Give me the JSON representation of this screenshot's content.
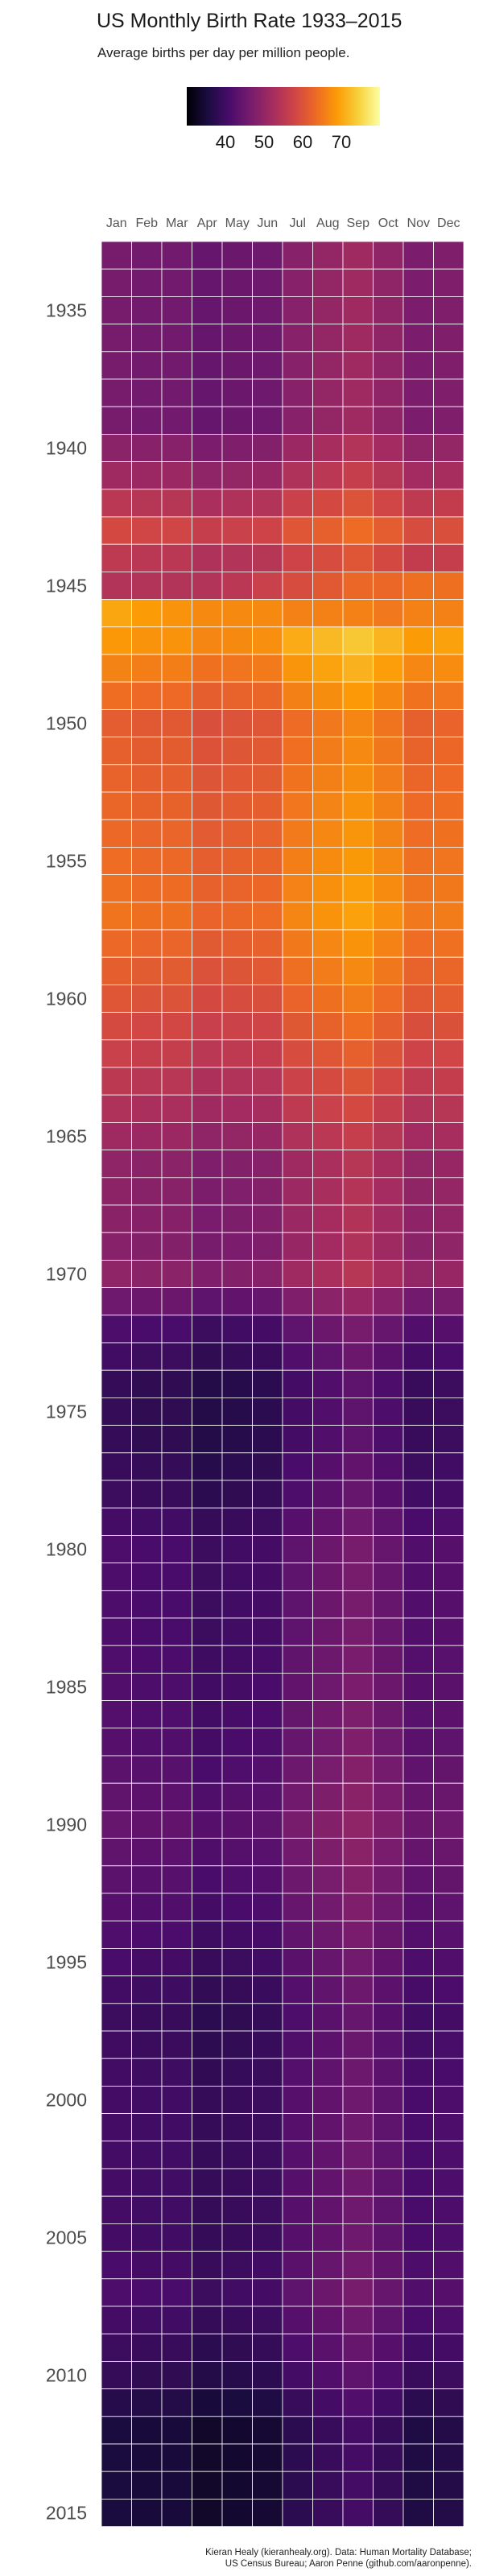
{
  "chart_data": {
    "type": "heatmap",
    "title": "US Monthly Birth Rate 1933–2015",
    "subtitle": "Average births per day per million people.",
    "x_categories": [
      "Jan",
      "Feb",
      "Mar",
      "Apr",
      "May",
      "Jun",
      "Jul",
      "Aug",
      "Sep",
      "Oct",
      "Nov",
      "Dec"
    ],
    "y_range": [
      1933,
      2015
    ],
    "y_tick_labels": [
      "1935",
      "1940",
      "1945",
      "1950",
      "1955",
      "1960",
      "1965",
      "1970",
      "1975",
      "1980",
      "1985",
      "1990",
      "1995",
      "2000",
      "2005",
      "2010",
      "2015"
    ],
    "legend": {
      "type": "colorbar",
      "tick_labels": [
        "40",
        "50",
        "60",
        "70"
      ],
      "domain": [
        30,
        80
      ],
      "placement": "top"
    },
    "colormap": [
      "#000004",
      "#1b0c41",
      "#4a0c6b",
      "#781c6d",
      "#a52c60",
      "#cf4446",
      "#ed6925",
      "#fb9b06",
      "#f7d13d",
      "#fcffa4"
    ],
    "grid": true,
    "grid_color": "#ffffff",
    "year_levels": [
      [
        1933,
        47
      ],
      [
        1935,
        47
      ],
      [
        1939,
        47
      ],
      [
        1941,
        52
      ],
      [
        1943,
        59
      ],
      [
        1944,
        56
      ],
      [
        1945,
        54
      ],
      [
        1946,
        62
      ],
      [
        1947,
        69
      ],
      [
        1950,
        62
      ],
      [
        1957,
        65
      ],
      [
        1960,
        61
      ],
      [
        1964,
        54
      ],
      [
        1966,
        50
      ],
      [
        1969,
        49
      ],
      [
        1970,
        50
      ],
      [
        1972,
        42
      ],
      [
        1974,
        39
      ],
      [
        1976,
        39
      ],
      [
        1978,
        40
      ],
      [
        1980,
        42
      ],
      [
        1983,
        42
      ],
      [
        1987,
        43
      ],
      [
        1990,
        45
      ],
      [
        1993,
        43
      ],
      [
        1997,
        40
      ],
      [
        2000,
        41
      ],
      [
        2005,
        41
      ],
      [
        2007,
        42
      ],
      [
        2010,
        39
      ],
      [
        2012,
        36
      ],
      [
        2015,
        36
      ]
    ],
    "month_offsets": [
      -0.5,
      -1,
      -1,
      -2.5,
      -2,
      -1.5,
      1.5,
      3,
      4.5,
      2.5,
      0,
      0.5
    ],
    "irregular_years": {
      "1945": [
        54,
        54,
        54,
        54,
        55,
        57,
        59,
        61,
        63,
        63,
        64,
        64
      ],
      "1946": [
        70,
        69,
        68,
        67,
        67,
        67,
        66,
        66,
        66,
        65,
        66,
        66
      ]
    }
  },
  "credits": {
    "line1": "Kieran Healy (kieranhealy.org). Data: Human Mortality Database;",
    "line2": "US Census Bureau; Aaron Penne (github.com/aaronpenne)."
  }
}
